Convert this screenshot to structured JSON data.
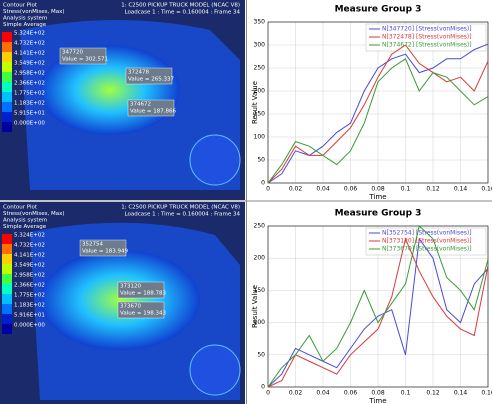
{
  "contour_plots": [
    {
      "title": "Contour Plot",
      "result": "Stress(vonMises, Max)",
      "system": "Analysis system",
      "averaging": "Simple Average",
      "model": "1: C2500 PICKUP TRUCK MODEL (NCAC V8)",
      "loadcase": "Loadcase 1 : Time = 0.160004 : Frame 34",
      "legend": [
        "5.324E+02",
        "4.732E+02",
        "4.141E+02",
        "3.549E+02",
        "2.958E+02",
        "2.366E+02",
        "1.775E+02",
        "1.183E+02",
        "5.915E+01",
        "0.000E+00"
      ],
      "notes": [
        {
          "node": "347720",
          "value": "Value = 302.571"
        },
        {
          "node": "372478",
          "value": "Value = 265.337"
        },
        {
          "node": "374672",
          "value": "Value = 187.866"
        }
      ]
    },
    {
      "title": "Contour Plot",
      "result": "Stress(vonMises, Max)",
      "system": "Analysis system",
      "averaging": "Simple Average",
      "model": "1: C2500 PICKUP TRUCK MODEL (NCAC V8)",
      "loadcase": "Loadcase 1 : Time = 0.160004 : Frame 34",
      "legend": [
        "5.324E+02",
        "4.732E+02",
        "4.141E+02",
        "3.549E+02",
        "2.958E+02",
        "2.366E+02",
        "1.775E+02",
        "1.183E+02",
        "5.916E+01",
        "0.000E+00"
      ],
      "notes": [
        {
          "node": "352754",
          "value": "Value = 183.949"
        },
        {
          "node": "373120",
          "value": "Value = 188.783"
        },
        {
          "node": "373670",
          "value": "Value = 198.343"
        }
      ]
    }
  ],
  "chart_data": [
    {
      "type": "line",
      "title": "Measure Group 3",
      "xlabel": "Time",
      "ylabel": "Result Value",
      "x": [
        0,
        0.01,
        0.02,
        0.03,
        0.04,
        0.05,
        0.06,
        0.07,
        0.08,
        0.09,
        0.1,
        0.11,
        0.12,
        0.13,
        0.14,
        0.15,
        0.16
      ],
      "xlim": [
        0,
        0.16
      ],
      "xticks": [
        0,
        0.02,
        0.04,
        0.06,
        0.08,
        0.1,
        0.12,
        0.14,
        0.16
      ],
      "ylim": [
        0,
        350
      ],
      "yticks": [
        0,
        50,
        100,
        150,
        200,
        250,
        300,
        350
      ],
      "grid": true,
      "series": [
        {
          "name": "N[347720] [Stress(vonMises)]",
          "color": "#4a4ad8",
          "values": [
            0,
            20,
            70,
            60,
            80,
            110,
            130,
            200,
            250,
            270,
            280,
            240,
            250,
            270,
            270,
            290,
            302
          ]
        },
        {
          "name": "N[372478] [Stress(vonMises)]",
          "color": "#d83a3a",
          "values": [
            0,
            30,
            80,
            60,
            60,
            90,
            120,
            170,
            230,
            280,
            300,
            260,
            240,
            220,
            230,
            200,
            265
          ]
        },
        {
          "name": "N[374672] [Stress(vonMises)]",
          "color": "#3a9a3a",
          "values": [
            0,
            40,
            90,
            80,
            60,
            40,
            70,
            130,
            220,
            250,
            270,
            200,
            240,
            230,
            200,
            170,
            188
          ]
        }
      ]
    },
    {
      "type": "line",
      "title": "Measure Group 3",
      "xlabel": "Time",
      "ylabel": "Result Value",
      "x": [
        0,
        0.01,
        0.02,
        0.03,
        0.04,
        0.05,
        0.06,
        0.07,
        0.08,
        0.09,
        0.1,
        0.11,
        0.12,
        0.13,
        0.14,
        0.15,
        0.16
      ],
      "xlim": [
        0,
        0.16
      ],
      "xticks": [
        0,
        0.02,
        0.04,
        0.06,
        0.08,
        0.1,
        0.12,
        0.14,
        0.16
      ],
      "ylim": [
        0,
        250
      ],
      "yticks": [
        0,
        50,
        100,
        150,
        200,
        250
      ],
      "grid": true,
      "series": [
        {
          "name": "N[352754] [Stress(vonMises)]",
          "color": "#4a4ad8",
          "values": [
            0,
            20,
            60,
            50,
            40,
            30,
            60,
            90,
            110,
            120,
            50,
            230,
            200,
            120,
            100,
            160,
            184
          ]
        },
        {
          "name": "N[373120] [Stress(vonMises)]",
          "color": "#d83a3a",
          "values": [
            0,
            10,
            50,
            40,
            30,
            20,
            50,
            70,
            90,
            140,
            230,
            180,
            140,
            110,
            90,
            80,
            189
          ]
        },
        {
          "name": "N[373670] [Stress(vonMises)]",
          "color": "#3a9a3a",
          "values": [
            0,
            30,
            50,
            80,
            40,
            60,
            100,
            150,
            100,
            130,
            160,
            250,
            230,
            170,
            150,
            120,
            198
          ]
        }
      ]
    }
  ]
}
